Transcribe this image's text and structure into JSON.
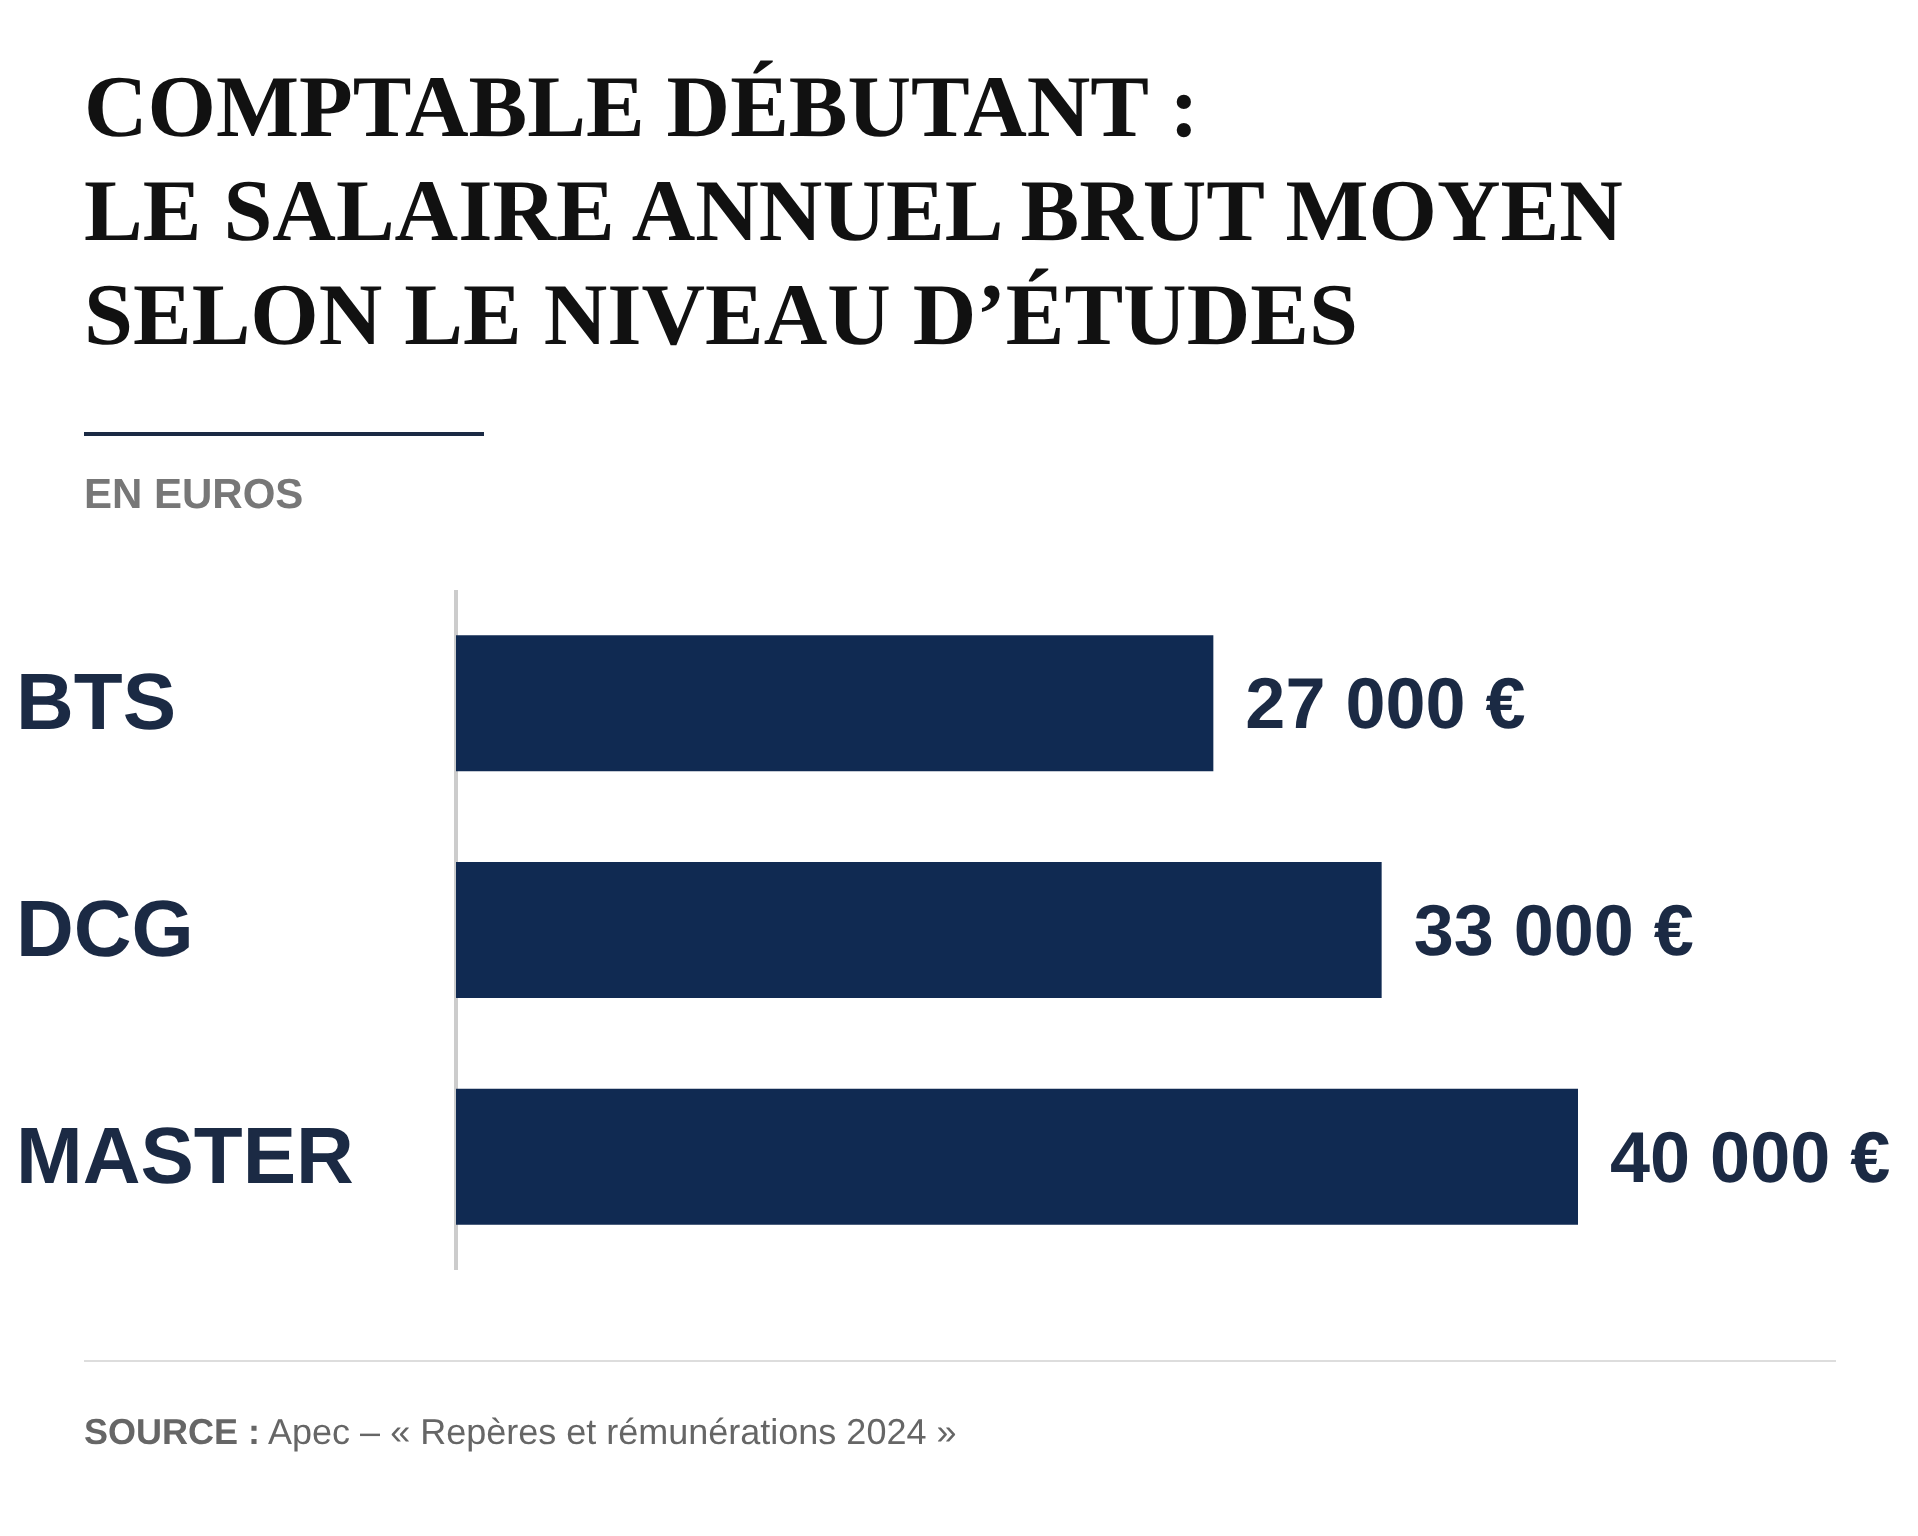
{
  "chart_data": {
    "type": "bar",
    "orientation": "horizontal",
    "title": "COMPTABLE DÉBUTANT :\nLE SALAIRE ANNUEL BRUT MOYEN\nSELON LE NIVEAU D’ÉTUDES",
    "subtitle": "EN EUROS",
    "categories": [
      "BTS",
      "DCG",
      "MASTER"
    ],
    "values": [
      27000,
      33000,
      40000
    ],
    "value_labels": [
      "27 000 €",
      "33 000 €",
      "40 000 €"
    ],
    "color": "#102a52",
    "annotations": [
      "SOURCE : Apec – « Repères et rémunérations 2024 »"
    ]
  }
}
